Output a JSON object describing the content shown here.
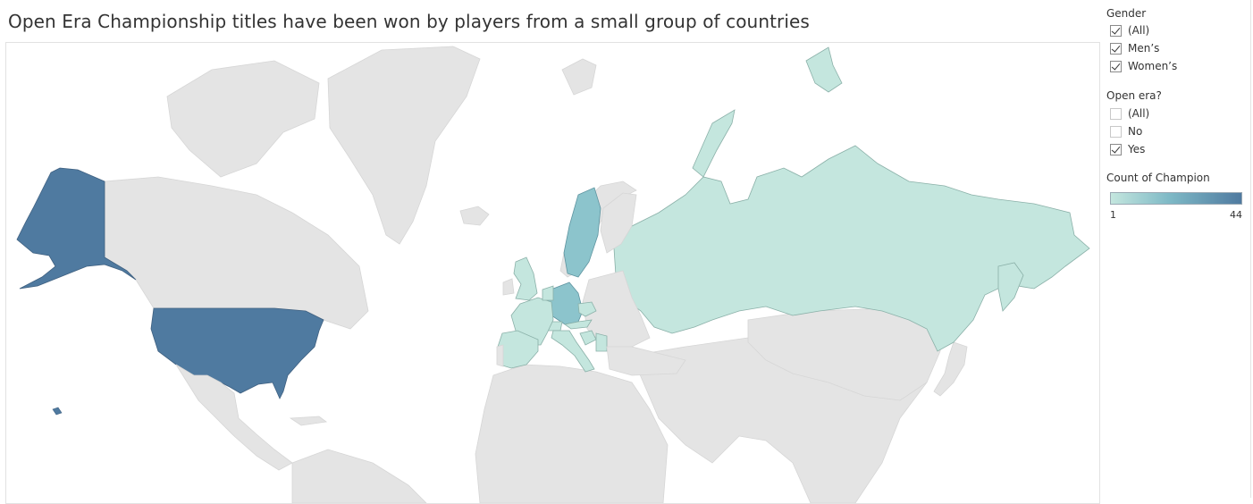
{
  "title": "Open Era Championship titles have been won by players from a small group of countries",
  "filters": {
    "gender": {
      "title": "Gender",
      "options": [
        {
          "label": "(All)",
          "checked": true
        },
        {
          "label": "Men’s",
          "checked": true
        },
        {
          "label": "Women’s",
          "checked": true
        }
      ]
    },
    "open_era": {
      "title": "Open era?",
      "options": [
        {
          "label": "(All)",
          "checked": false
        },
        {
          "label": "No",
          "checked": false
        },
        {
          "label": "Yes",
          "checked": true
        }
      ]
    }
  },
  "legend": {
    "title": "Count of Champion",
    "min_label": "1",
    "max_label": "44"
  },
  "colors": {
    "land_default": "#e4e4e4",
    "ocean": "#ffffff",
    "scale_low": "#c4e6de",
    "scale_mid": "#8cc4cc",
    "scale_high": "#4f7aa0"
  },
  "map": {
    "type": "choropleth",
    "measure": "Count of Champion",
    "highlighted_countries": [
      {
        "country": "United States",
        "level": "high"
      },
      {
        "country": "Russia",
        "level": "low"
      },
      {
        "country": "Sweden",
        "level": "mid"
      },
      {
        "country": "Germany",
        "level": "mid"
      },
      {
        "country": "Spain",
        "level": "low"
      },
      {
        "country": "France",
        "level": "low"
      },
      {
        "country": "United Kingdom",
        "level": "low"
      },
      {
        "country": "Switzerland",
        "level": "low"
      },
      {
        "country": "Czech Republic",
        "level": "low"
      },
      {
        "country": "Austria",
        "level": "low"
      },
      {
        "country": "Croatia",
        "level": "low"
      },
      {
        "country": "Serbia",
        "level": "low"
      },
      {
        "country": "Italy",
        "level": "low"
      },
      {
        "country": "Netherlands",
        "level": "low"
      }
    ]
  }
}
